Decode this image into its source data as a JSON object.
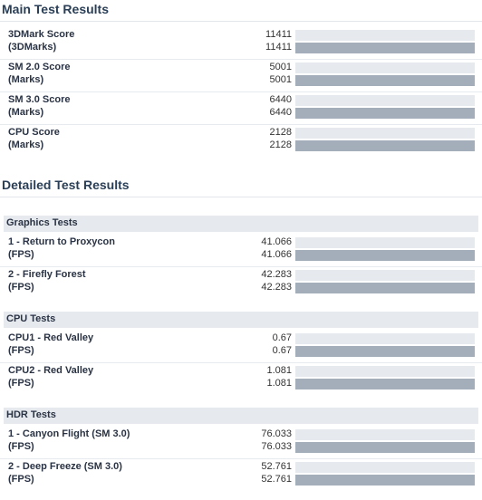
{
  "main": {
    "title": "Main Test Results",
    "rows": [
      {
        "label": "3DMark Score",
        "sub": "(3DMarks)",
        "v1": "11411",
        "v2": "11411"
      },
      {
        "label": "SM 2.0 Score",
        "sub": "(Marks)",
        "v1": "5001",
        "v2": "5001"
      },
      {
        "label": "SM 3.0 Score",
        "sub": "(Marks)",
        "v1": "6440",
        "v2": "6440"
      },
      {
        "label": "CPU Score",
        "sub": "(Marks)",
        "v1": "2128",
        "v2": "2128"
      }
    ]
  },
  "detailed": {
    "title": "Detailed Test Results",
    "groups": [
      {
        "name": "Graphics Tests",
        "rows": [
          {
            "label": "1 - Return to Proxycon",
            "sub": "(FPS)",
            "v1": "41.066",
            "v2": "41.066"
          },
          {
            "label": "2 - Firefly Forest",
            "sub": "(FPS)",
            "v1": "42.283",
            "v2": "42.283"
          }
        ]
      },
      {
        "name": "CPU Tests",
        "rows": [
          {
            "label": "CPU1 - Red Valley",
            "sub": "(FPS)",
            "v1": "0.67",
            "v2": "0.67"
          },
          {
            "label": "CPU2 - Red Valley",
            "sub": "(FPS)",
            "v1": "1.081",
            "v2": "1.081"
          }
        ]
      },
      {
        "name": "HDR Tests",
        "rows": [
          {
            "label": "1 - Canyon Flight (SM 3.0)",
            "sub": "(FPS)",
            "v1": "76.033",
            "v2": "76.033"
          },
          {
            "label": "2 - Deep Freeze (SM 3.0)",
            "sub": "(FPS)",
            "v1": "52.761",
            "v2": "52.761"
          }
        ]
      }
    ]
  }
}
